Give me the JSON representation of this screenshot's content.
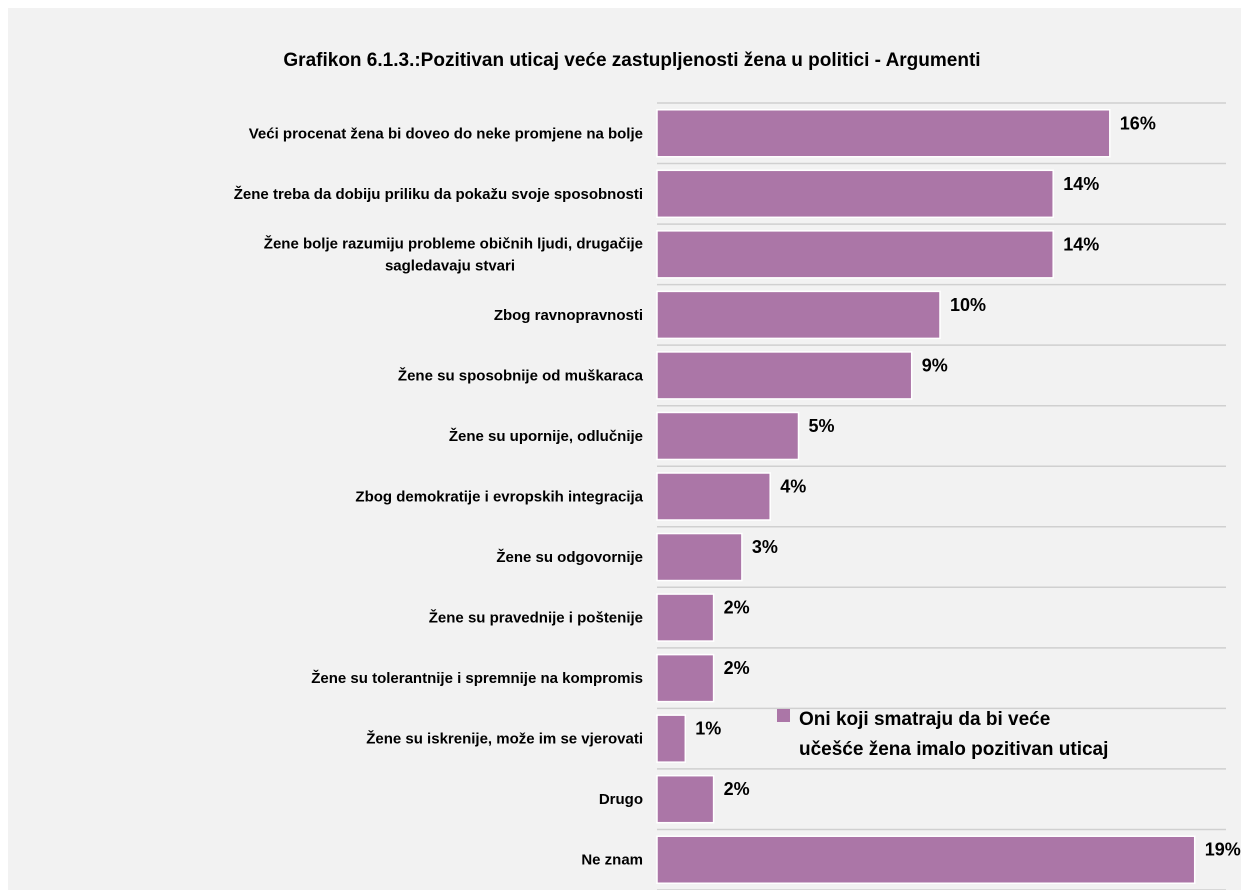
{
  "chart_data": {
    "type": "bar",
    "orientation": "horizontal",
    "title": "Grafikon 6.1.3.:Pozitivan uticaj veće zastupljenosti žena u politici - Argumenti",
    "categories": [
      "Veći procenat žena bi doveo do neke promjene na bolje",
      "Žene treba da dobiju priliku da pokažu svoje sposobnosti",
      "Žene bolje razumiju probleme običnih ljudi, drugačije sagledavaju stvari",
      "Zbog ravnopravnosti",
      "Žene su sposobnije od muškaraca",
      "Žene su upornije, odlučnije",
      "Zbog demokratije i evropskih integracija",
      "Žene su odgovornije",
      "Žene su pravednije i poštenije",
      "Žene su tolerantnije i spremnije na kompromis",
      "Žene su iskrenije, može im se vjerovati",
      "Drugo",
      "Ne znam"
    ],
    "series": [
      {
        "name": "Oni koji smatraju da bi veće učešće žena imalo pozitivan uticaj",
        "values": [
          16,
          14,
          14,
          10,
          9,
          5,
          4,
          3,
          2,
          2,
          1,
          2,
          19
        ],
        "labels": [
          "16%",
          "14%",
          "14%",
          "10%",
          "9%",
          "5%",
          "4%",
          "3%",
          "2%",
          "2%",
          "1%",
          "2%",
          "19%"
        ]
      }
    ],
    "unit": "%",
    "xlim": [
      0,
      20
    ],
    "grid": true,
    "legend_position": "right"
  },
  "colors": {
    "bar": "#ab76a7",
    "grid": "#d0d0d0",
    "panel": "#f2f2f2"
  }
}
